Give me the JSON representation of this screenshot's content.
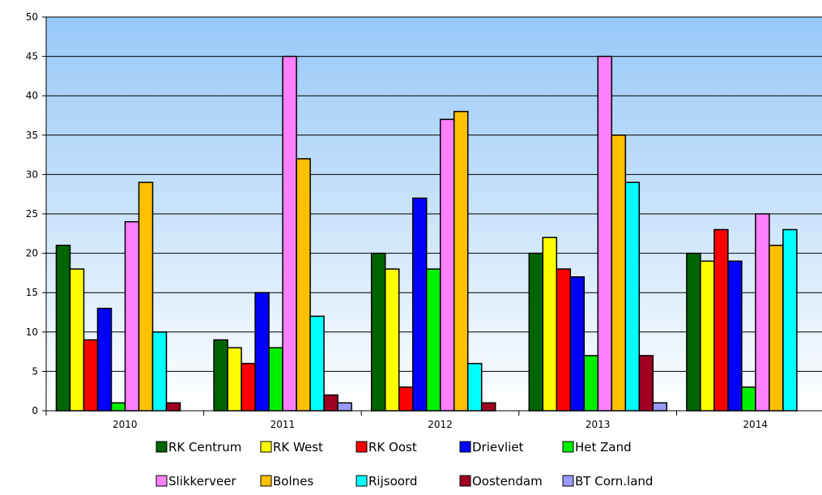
{
  "chart_data": {
    "type": "bar",
    "categories": [
      "2010",
      "2011",
      "2012",
      "2013",
      "2014"
    ],
    "ylim": [
      0,
      50
    ],
    "yticks": [
      0,
      5,
      10,
      15,
      20,
      25,
      30,
      35,
      40,
      45,
      50
    ],
    "grid": true,
    "legend_position": "bottom",
    "plot_background": {
      "top": "#96c8f7",
      "bottom": "#ffffff"
    },
    "series": [
      {
        "name": "RK Centrum",
        "color": "#006400",
        "values": [
          21,
          9,
          20,
          20,
          20
        ]
      },
      {
        "name": "RK West",
        "color": "#ffff00",
        "values": [
          18,
          8,
          18,
          22,
          19
        ]
      },
      {
        "name": "RK Oost",
        "color": "#ff0000",
        "values": [
          9,
          6,
          3,
          18,
          23
        ]
      },
      {
        "name": "Drievliet",
        "color": "#0000ff",
        "values": [
          13,
          15,
          27,
          17,
          19
        ]
      },
      {
        "name": "Het Zand",
        "color": "#00ee00",
        "values": [
          1,
          8,
          18,
          7,
          3
        ]
      },
      {
        "name": "Slikkerveer",
        "color": "#ff80ff",
        "values": [
          24,
          45,
          37,
          45,
          25
        ]
      },
      {
        "name": "Bolnes",
        "color": "#ffc000",
        "values": [
          29,
          32,
          38,
          35,
          21
        ]
      },
      {
        "name": "Rijsoord",
        "color": "#00ffff",
        "values": [
          10,
          12,
          6,
          29,
          23
        ]
      },
      {
        "name": "Oostendam",
        "color": "#a00020",
        "values": [
          1,
          2,
          1,
          7,
          0
        ]
      },
      {
        "name": "BT Corn.land",
        "color": "#9999ff",
        "values": [
          0,
          1,
          0,
          1,
          0
        ]
      }
    ]
  }
}
